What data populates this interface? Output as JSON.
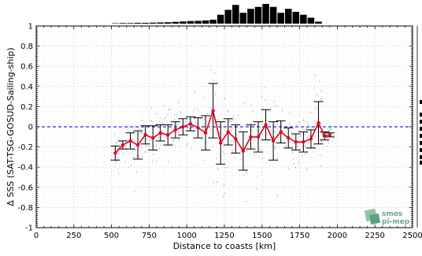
{
  "chart_data": {
    "type": "line",
    "xlabel": "Distance to coasts [km]",
    "ylabel": "Δ SSS (SAT-TSG-GOSUD-Sailing-ship)",
    "xlim": [
      0,
      2500
    ],
    "ylim": [
      -1,
      1
    ],
    "x_ticks": [
      "0",
      "250",
      "500",
      "750",
      "1000",
      "1250",
      "1500",
      "1750",
      "2000",
      "2250",
      "2500"
    ],
    "y_ticks": [
      "1",
      "0.8",
      "0.6",
      "0.4",
      "0.2",
      "0",
      "-0.2",
      "-0.4",
      "-0.6",
      "-0.8",
      "-1"
    ],
    "grid": true,
    "reference_line": {
      "y": 0,
      "color": "#2233cc",
      "style": "dashed"
    },
    "series": [
      {
        "color": "#e8001c",
        "points": [
          {
            "x": 525,
            "y": -0.26,
            "err": 0.07
          },
          {
            "x": 575,
            "y": -0.18,
            "err": 0.04
          },
          {
            "x": 625,
            "y": -0.14,
            "err": 0.08
          },
          {
            "x": 675,
            "y": -0.18,
            "err": 0.14
          },
          {
            "x": 725,
            "y": -0.08,
            "err": 0.09
          },
          {
            "x": 775,
            "y": -0.11,
            "err": 0.12
          },
          {
            "x": 825,
            "y": -0.06,
            "err": 0.08
          },
          {
            "x": 875,
            "y": -0.08,
            "err": 0.1
          },
          {
            "x": 925,
            "y": -0.03,
            "err": 0.08
          },
          {
            "x": 975,
            "y": 0.0,
            "err": 0.08
          },
          {
            "x": 1025,
            "y": 0.03,
            "err": 0.07
          },
          {
            "x": 1075,
            "y": -0.01,
            "err": 0.1
          },
          {
            "x": 1125,
            "y": -0.06,
            "err": 0.17
          },
          {
            "x": 1175,
            "y": 0.16,
            "err": 0.27
          },
          {
            "x": 1225,
            "y": -0.16,
            "err": 0.21
          },
          {
            "x": 1275,
            "y": -0.05,
            "err": 0.13
          },
          {
            "x": 1325,
            "y": -0.12,
            "err": 0.14
          },
          {
            "x": 1375,
            "y": -0.24,
            "err": 0.19
          },
          {
            "x": 1425,
            "y": -0.1,
            "err": 0.12
          },
          {
            "x": 1475,
            "y": -0.1,
            "err": 0.15
          },
          {
            "x": 1525,
            "y": 0.02,
            "err": 0.15
          },
          {
            "x": 1575,
            "y": -0.14,
            "err": 0.19
          },
          {
            "x": 1625,
            "y": -0.05,
            "err": 0.11
          },
          {
            "x": 1675,
            "y": -0.11,
            "err": 0.1
          },
          {
            "x": 1725,
            "y": -0.15,
            "err": 0.08
          },
          {
            "x": 1775,
            "y": -0.15,
            "err": 0.1
          },
          {
            "x": 1825,
            "y": -0.12,
            "err": 0.09
          },
          {
            "x": 1875,
            "y": 0.04,
            "err": 0.21
          },
          {
            "x": 1915,
            "y": -0.09,
            "err": 0.04
          },
          {
            "x": 1950,
            "y": -0.08,
            "err": 0.02
          }
        ]
      }
    ],
    "top_histogram": {
      "bins_x": [
        500,
        550,
        600,
        650,
        700,
        750,
        800,
        850,
        900,
        950,
        1000,
        1050,
        1100,
        1150,
        1200,
        1250,
        1300,
        1350,
        1400,
        1450,
        1500,
        1550,
        1600,
        1650,
        1700,
        1750,
        1800,
        1850
      ],
      "heights": [
        0.02,
        0.03,
        0.03,
        0.04,
        0.04,
        0.05,
        0.06,
        0.07,
        0.09,
        0.11,
        0.13,
        0.14,
        0.16,
        0.2,
        0.45,
        0.7,
        0.95,
        0.55,
        0.75,
        0.85,
        1.0,
        0.85,
        0.55,
        0.75,
        0.6,
        0.45,
        0.3,
        0.1
      ]
    },
    "logo": {
      "line1": "smos",
      "line2": "pi-mep"
    }
  }
}
